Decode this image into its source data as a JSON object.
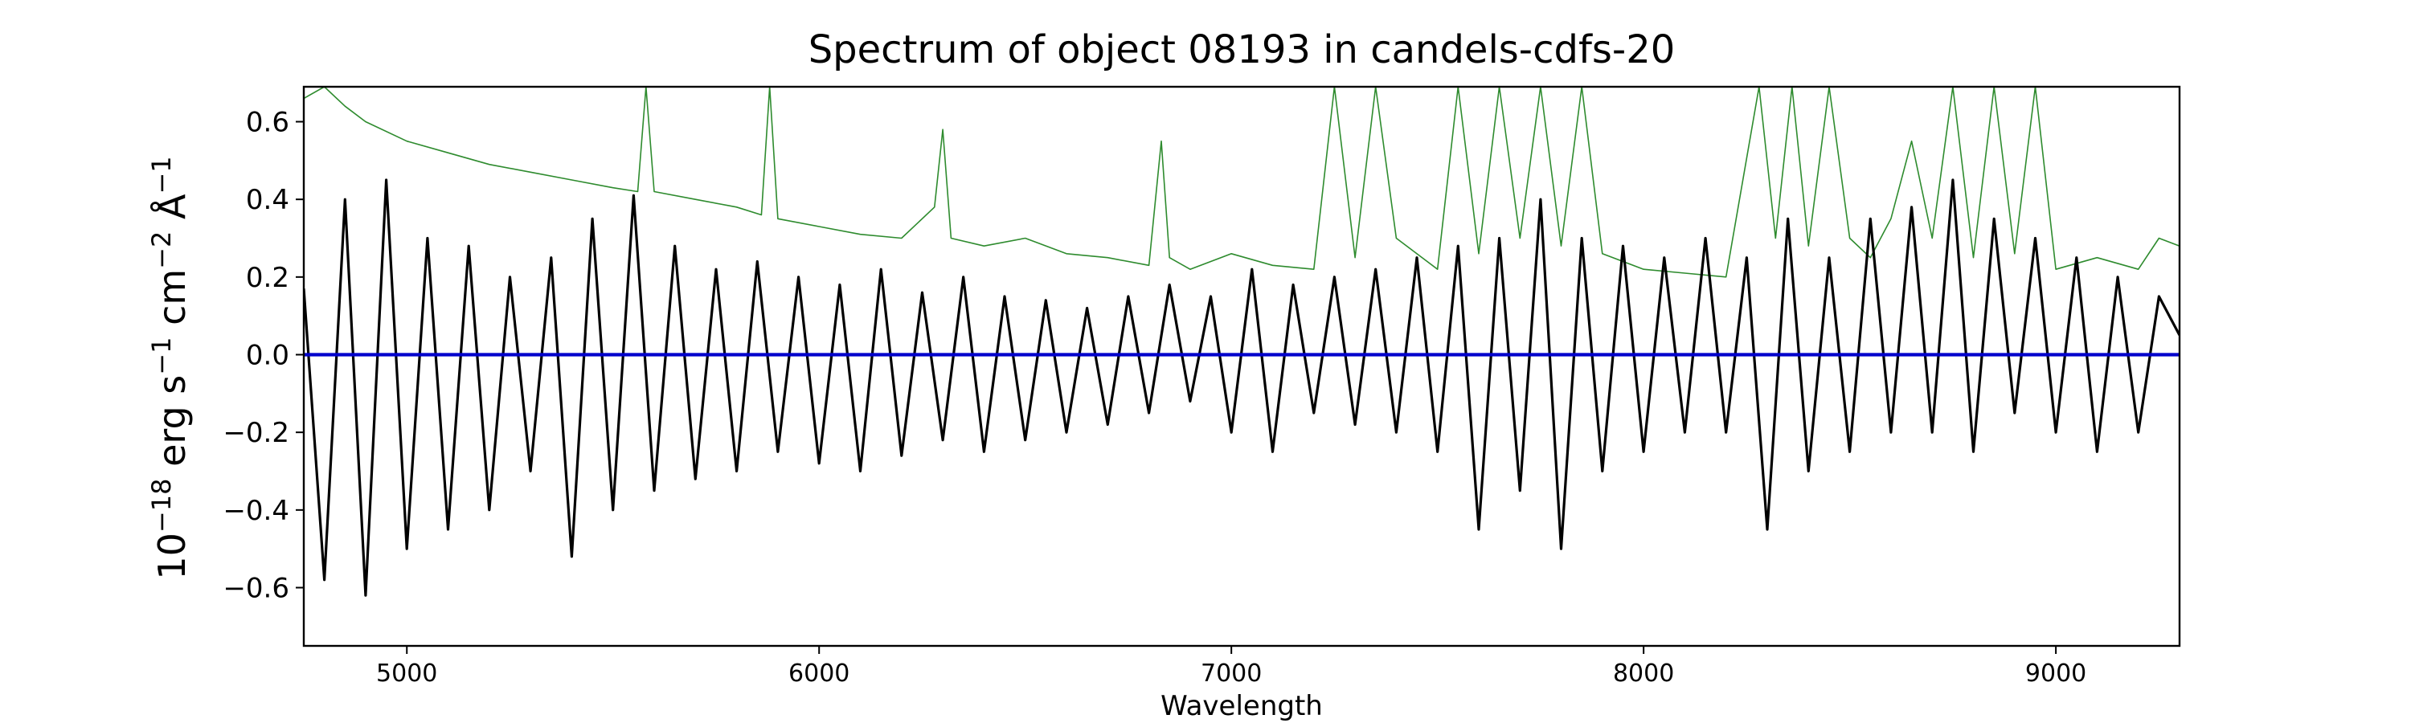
{
  "chart_data": {
    "type": "line",
    "title": "Spectrum of object 08193 in candels-cdfs-20",
    "xlabel": "Wavelength",
    "ylabel_parts": {
      "base": "10",
      "exp1": "−18",
      "erg": " erg s",
      "exp2": "−1",
      "cm": " cm",
      "exp3": "−2",
      "ang": " Å",
      "exp4": "−1"
    },
    "xlim": [
      4750,
      9300
    ],
    "ylim": [
      -0.75,
      0.69
    ],
    "x_ticks": [
      5000,
      6000,
      7000,
      8000,
      9000
    ],
    "x_tick_labels": [
      "5000",
      "6000",
      "7000",
      "8000",
      "9000"
    ],
    "y_ticks": [
      -0.6,
      -0.4,
      -0.2,
      0.0,
      0.2,
      0.4,
      0.6
    ],
    "y_tick_labels": [
      "−0.6",
      "−0.4",
      "−0.2",
      "0.0",
      "0.2",
      "0.4",
      "0.6"
    ],
    "series": [
      {
        "role": "flux",
        "color": "#000000",
        "x": [
          4750,
          4800,
          4850,
          4900,
          4950,
          5000,
          5050,
          5100,
          5150,
          5200,
          5250,
          5300,
          5350,
          5400,
          5450,
          5500,
          5550,
          5600,
          5650,
          5700,
          5750,
          5800,
          5850,
          5900,
          5950,
          6000,
          6050,
          6100,
          6150,
          6200,
          6250,
          6300,
          6350,
          6400,
          6450,
          6500,
          6550,
          6600,
          6650,
          6700,
          6750,
          6800,
          6850,
          6900,
          6950,
          7000,
          7050,
          7100,
          7150,
          7200,
          7250,
          7300,
          7350,
          7400,
          7450,
          7500,
          7550,
          7600,
          7650,
          7700,
          7750,
          7800,
          7850,
          7900,
          7950,
          8000,
          8050,
          8100,
          8150,
          8200,
          8250,
          8300,
          8350,
          8400,
          8450,
          8500,
          8550,
          8600,
          8650,
          8700,
          8750,
          8800,
          8850,
          8900,
          8950,
          9000,
          9050,
          9100,
          9150,
          9200,
          9250,
          9300
        ],
        "y": [
          0.17,
          -0.58,
          0.4,
          -0.62,
          0.45,
          -0.5,
          0.3,
          -0.45,
          0.28,
          -0.4,
          0.2,
          -0.3,
          0.25,
          -0.52,
          0.35,
          -0.4,
          0.41,
          -0.35,
          0.28,
          -0.32,
          0.22,
          -0.3,
          0.24,
          -0.25,
          0.2,
          -0.28,
          0.18,
          -0.3,
          0.22,
          -0.26,
          0.16,
          -0.22,
          0.2,
          -0.25,
          0.15,
          -0.22,
          0.14,
          -0.2,
          0.12,
          -0.18,
          0.15,
          -0.15,
          0.18,
          -0.12,
          0.15,
          -0.2,
          0.22,
          -0.25,
          0.18,
          -0.15,
          0.2,
          -0.18,
          0.22,
          -0.2,
          0.25,
          -0.25,
          0.28,
          -0.45,
          0.3,
          -0.35,
          0.4,
          -0.5,
          0.3,
          -0.3,
          0.28,
          -0.25,
          0.25,
          -0.2,
          0.3,
          -0.2,
          0.25,
          -0.45,
          0.35,
          -0.3,
          0.25,
          -0.25,
          0.35,
          -0.2,
          0.38,
          -0.2,
          0.45,
          -0.25,
          0.35,
          -0.15,
          0.3,
          -0.2,
          0.25,
          -0.25,
          0.2,
          -0.2,
          0.15,
          0.05
        ]
      },
      {
        "role": "noise",
        "color": "#2e8b2e",
        "x": [
          4750,
          4800,
          4850,
          4900,
          5000,
          5100,
          5200,
          5300,
          5400,
          5500,
          5560,
          5580,
          5600,
          5700,
          5800,
          5860,
          5880,
          5900,
          6000,
          6100,
          6200,
          6280,
          6300,
          6320,
          6400,
          6500,
          6600,
          6700,
          6800,
          6830,
          6850,
          6900,
          7000,
          7100,
          7200,
          7250,
          7300,
          7350,
          7400,
          7500,
          7550,
          7600,
          7650,
          7700,
          7750,
          7800,
          7850,
          7900,
          8000,
          8100,
          8200,
          8280,
          8320,
          8360,
          8400,
          8450,
          8500,
          8550,
          8600,
          8650,
          8700,
          8750,
          8800,
          8850,
          8900,
          8950,
          9000,
          9100,
          9200,
          9250,
          9300
        ],
        "y": [
          0.66,
          0.69,
          0.64,
          0.6,
          0.55,
          0.52,
          0.49,
          0.47,
          0.45,
          0.43,
          0.42,
          0.69,
          0.42,
          0.4,
          0.38,
          0.36,
          0.69,
          0.35,
          0.33,
          0.31,
          0.3,
          0.38,
          0.58,
          0.3,
          0.28,
          0.3,
          0.26,
          0.25,
          0.23,
          0.55,
          0.25,
          0.22,
          0.26,
          0.23,
          0.22,
          0.69,
          0.25,
          0.69,
          0.3,
          0.22,
          0.69,
          0.26,
          0.69,
          0.3,
          0.69,
          0.28,
          0.69,
          0.26,
          0.22,
          0.21,
          0.2,
          0.69,
          0.3,
          0.69,
          0.28,
          0.69,
          0.3,
          0.25,
          0.35,
          0.55,
          0.3,
          0.69,
          0.25,
          0.69,
          0.26,
          0.69,
          0.22,
          0.25,
          0.22,
          0.3,
          0.28
        ]
      },
      {
        "role": "zero-line",
        "color": "#0000cc",
        "x": [
          4750,
          9300
        ],
        "y": [
          0.0,
          0.0
        ]
      }
    ],
    "grid": false,
    "legend": "none"
  }
}
